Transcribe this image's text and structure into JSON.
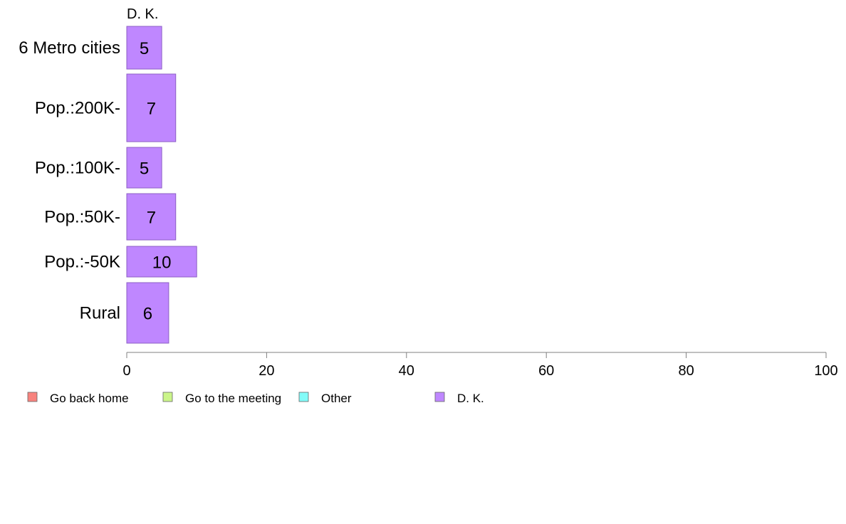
{
  "chart_data": {
    "type": "bar",
    "orientation": "horizontal",
    "stacked": true,
    "categories": [
      "6 Metro cities",
      "Pop.:200K-",
      "Pop.:100K-",
      "Pop.:50K-",
      "Pop.:-50K",
      "Rural"
    ],
    "series": [
      {
        "name": "D. K.",
        "color": "#bf87ff",
        "values": [
          5,
          7,
          5,
          7,
          10,
          6
        ]
      }
    ],
    "legend": [
      {
        "name": "Go back home",
        "color": "#f8837e"
      },
      {
        "name": "Go to the meeting",
        "color": "#cbf58a"
      },
      {
        "name": "Other",
        "color": "#82fbf8"
      },
      {
        "name": "D. K.",
        "color": "#bf87ff"
      }
    ],
    "series_title": "D. K.",
    "xlim": [
      0,
      100
    ],
    "xticks": [
      0,
      20,
      40,
      60,
      80,
      100
    ],
    "legend_position": "bottom",
    "grid": false
  }
}
